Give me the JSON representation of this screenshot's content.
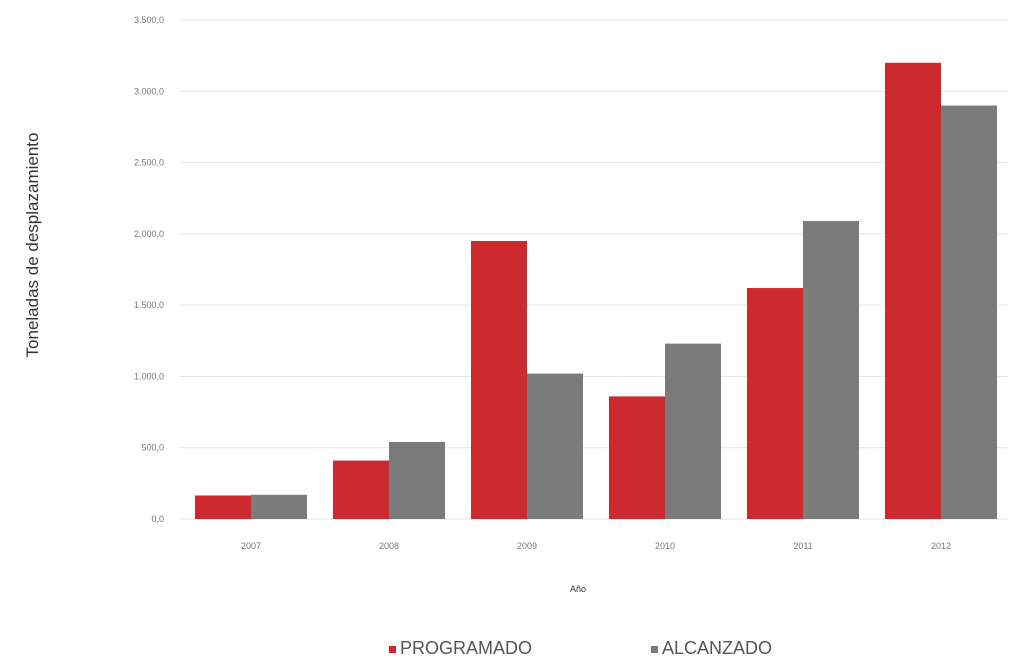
{
  "chart_data": {
    "type": "bar",
    "categories": [
      "2007",
      "2008",
      "2009",
      "2010",
      "2011",
      "2012"
    ],
    "series": [
      {
        "name": "PROGRAMADO",
        "color": "#cc2a2e",
        "values": [
          165,
          410,
          1950,
          860,
          1620,
          3200
        ]
      },
      {
        "name": "ALCANZADO",
        "color": "#7b7b7b",
        "values": [
          170,
          540,
          1020,
          1230,
          2090,
          2900
        ]
      }
    ],
    "xlabel": "Año",
    "ylabel": "Toneladas de desplazamiento",
    "ylim": [
      0,
      3500
    ],
    "yticks": [
      {
        "value": 0,
        "label": "0,0"
      },
      {
        "value": 500,
        "label": "500,0"
      },
      {
        "value": 1000,
        "label": "1.000,0"
      },
      {
        "value": 1500,
        "label": "1.500,0"
      },
      {
        "value": 2000,
        "label": "2.000,0"
      },
      {
        "value": 2500,
        "label": "2.500,0"
      },
      {
        "value": 3000,
        "label": "3.000,0"
      },
      {
        "value": 3500,
        "label": "3.500,0"
      }
    ],
    "grid": true,
    "legend": "bottom-center"
  }
}
